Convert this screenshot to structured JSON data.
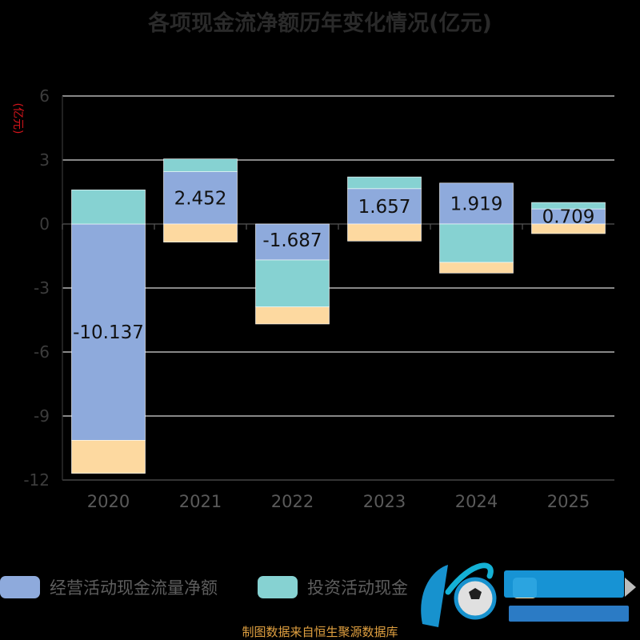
{
  "chart_data": {
    "type": "bar",
    "stacked": true,
    "title": "各项现金流净额历年变化情况(亿元)",
    "unit_label": "(亿元)",
    "categories": [
      "2020",
      "2021",
      "2022",
      "2023",
      "2024",
      "2025"
    ],
    "ylim": [
      -12,
      6
    ],
    "yticks": [
      6,
      3,
      0,
      -3,
      -6,
      -9,
      -12
    ],
    "grid": true,
    "legend_position": "bottom",
    "series": [
      {
        "name": "经营活动现金流量净额",
        "color": "#8eaadc",
        "values": [
          -10.137,
          2.452,
          -1.687,
          1.657,
          1.919,
          0.709
        ]
      },
      {
        "name": "",
        "color": "#86d2d2",
        "values": [
          1.6,
          0.6,
          -2.2,
          0.55,
          -1.8,
          0.3
        ]
      },
      {
        "name": "",
        "color": "#fdd9a0",
        "values": [
          -1.55,
          -0.85,
          -0.8,
          -0.8,
          -0.5,
          -0.45
        ]
      }
    ],
    "data_labels": [
      "-10.137",
      "2.452",
      "-1.687",
      "1.657",
      "1.919",
      "0.709"
    ]
  },
  "legend": {
    "item1": "经营活动现金流量净额",
    "item2": "投资活动现金"
  },
  "source": "制图数据来自恒生聚源数据库"
}
